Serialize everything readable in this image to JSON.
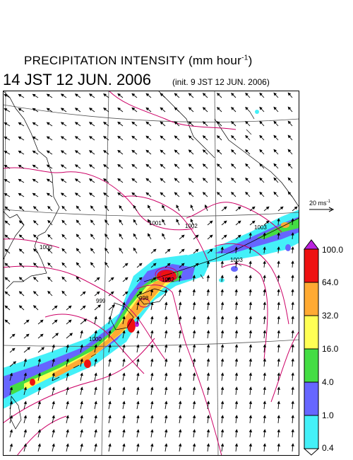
{
  "header": {
    "title_main": "PRECIPITATION INTENSITY (mm hour",
    "title_sup": "-1",
    "title_end": ")",
    "valid_time": "14 JST 12 JUN. 2006",
    "init_time": "(init. 9 JST 12 JUN. 2006)"
  },
  "vector_scale": {
    "label": "20 ms",
    "sup": "-1"
  },
  "colorbar": {
    "levels": [
      "0.4",
      "1.0",
      "4.0",
      "16.0",
      "32.0",
      "64.0",
      "100.0"
    ],
    "colors": [
      "#ffffff",
      "#44f0f8",
      "#6666ff",
      "#44dd44",
      "#ffff55",
      "#ffaa33",
      "#ee1111",
      "#bb22dd"
    ]
  },
  "isobars": [
    {
      "label": "1000"
    },
    {
      "label": "1001"
    },
    {
      "label": "1002"
    },
    {
      "label": "1003"
    },
    {
      "label": "999"
    },
    {
      "label": "998"
    },
    {
      "label": "1002"
    },
    {
      "label": "1000"
    },
    {
      "label": "1003"
    }
  ],
  "colors": {
    "isobar": "#cc0066",
    "grid": "#333333",
    "coast": "#000000"
  }
}
